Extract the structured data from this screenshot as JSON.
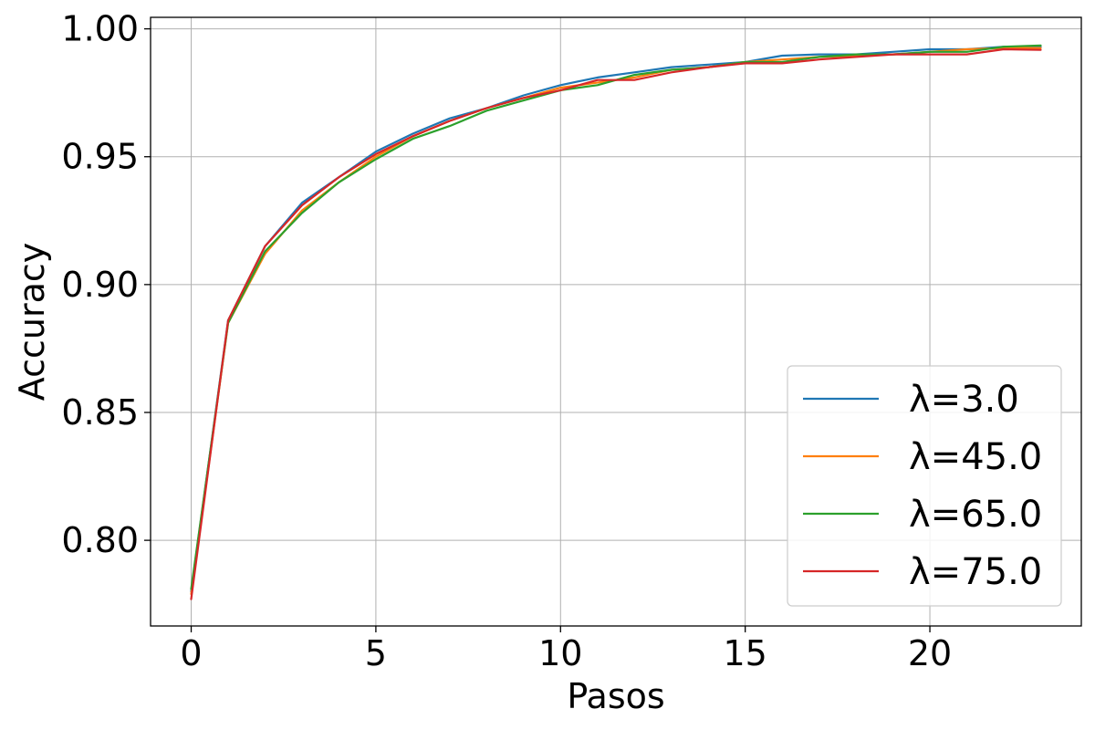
{
  "chart_data": {
    "type": "line",
    "title": "",
    "xlabel": "Pasos",
    "ylabel": "Accuracy",
    "xlim": [
      -1.1,
      24.1
    ],
    "ylim": [
      0.7665,
      1.0045
    ],
    "xticks": [
      0,
      5,
      10,
      15,
      20
    ],
    "yticks": [
      0.8,
      0.85,
      0.9,
      0.95,
      1.0
    ],
    "xtick_labels": [
      "0",
      "5",
      "10",
      "15",
      "20"
    ],
    "ytick_labels": [
      "0.80",
      "0.85",
      "0.90",
      "0.95",
      "1.00"
    ],
    "grid": true,
    "legend_position": "lower-right",
    "x": [
      0,
      1,
      2,
      3,
      4,
      5,
      6,
      7,
      8,
      9,
      10,
      11,
      12,
      13,
      14,
      15,
      16,
      17,
      18,
      19,
      20,
      21,
      22,
      23
    ],
    "series": [
      {
        "name": "λ=3.0",
        "color": "#1f77b4",
        "values": [
          0.78,
          0.886,
          0.915,
          0.932,
          0.942,
          0.952,
          0.959,
          0.965,
          0.969,
          0.974,
          0.978,
          0.981,
          0.983,
          0.985,
          0.986,
          0.987,
          0.9895,
          0.99,
          0.99,
          0.991,
          0.992,
          0.992,
          0.993,
          0.993
        ]
      },
      {
        "name": "λ=45.0",
        "color": "#ff7f0e",
        "values": [
          0.779,
          0.885,
          0.912,
          0.929,
          0.94,
          0.95,
          0.958,
          0.964,
          0.969,
          0.973,
          0.977,
          0.979,
          0.981,
          0.984,
          0.985,
          0.987,
          0.988,
          0.989,
          0.9895,
          0.99,
          0.991,
          0.992,
          0.9925,
          0.9925
        ]
      },
      {
        "name": "λ=65.0",
        "color": "#2ca02c",
        "values": [
          0.781,
          0.885,
          0.913,
          0.928,
          0.94,
          0.949,
          0.957,
          0.962,
          0.968,
          0.972,
          0.976,
          0.978,
          0.982,
          0.984,
          0.985,
          0.987,
          0.987,
          0.989,
          0.99,
          0.99,
          0.991,
          0.991,
          0.993,
          0.9935
        ]
      },
      {
        "name": "λ=75.0",
        "color": "#d62728",
        "values": [
          0.777,
          0.886,
          0.915,
          0.931,
          0.942,
          0.951,
          0.958,
          0.964,
          0.969,
          0.973,
          0.976,
          0.98,
          0.98,
          0.983,
          0.985,
          0.9865,
          0.9865,
          0.988,
          0.989,
          0.99,
          0.99,
          0.99,
          0.992,
          0.9918
        ]
      }
    ]
  }
}
